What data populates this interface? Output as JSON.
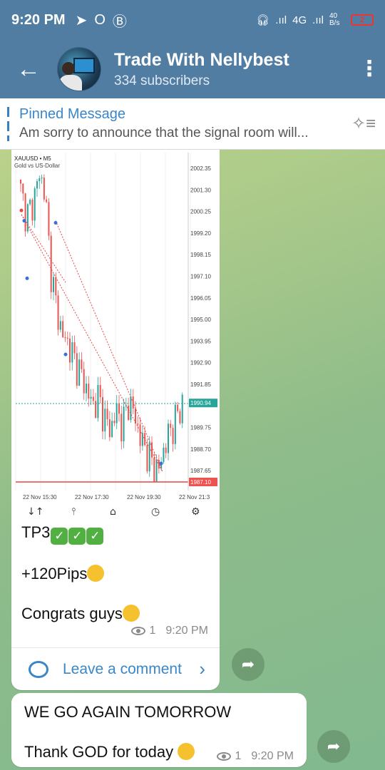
{
  "status": {
    "time": "9:20 PM",
    "net_speed": "40 B/s",
    "battery": "2",
    "network": "4G"
  },
  "header": {
    "title": "Trade With Nellybest",
    "subtitle": "334 subscribers"
  },
  "pinned": {
    "title": "Pinned Message",
    "text": "Am sorry to announce that the signal room will..."
  },
  "chart": {
    "symbol": "XAUUSD • M5",
    "description": "Gold vs US-Dollar",
    "price_ticks": [
      "2002.35",
      "2001.30",
      "2000.25",
      "1999.20",
      "1998.15",
      "1997.10",
      "1996.05",
      "1995.00",
      "1993.95",
      "1992.90",
      "1991.85",
      "1990.94",
      "1989.75",
      "1988.70",
      "1987.65",
      "1987.10"
    ],
    "time_ticks": [
      "22 Nov 15:30",
      "22 Nov 17:30",
      "22 Nov 19:30",
      "22 Nov 21:3"
    ]
  },
  "chart_data": {
    "type": "line",
    "title": "XAUUSD • M5",
    "subtitle": "Gold vs US-Dollar",
    "x": [
      "22 Nov 15:30",
      "22 Nov 17:30",
      "22 Nov 19:30",
      "22 Nov 21:3"
    ],
    "series": [
      {
        "values": [
          2001.5,
          1994.0,
          1989.0,
          1990.94
        ]
      }
    ],
    "current_price": 1990.94,
    "low_price": 1987.1,
    "ylim": [
      1987.1,
      2002.35
    ]
  },
  "message1": {
    "line1": "TP3",
    "line2": "+120Pips",
    "line3": "Congrats guys",
    "views": "1",
    "time": "9:20 PM",
    "comment_label": "Leave a comment"
  },
  "message2": {
    "line1": "WE GO AGAIN TOMORROW",
    "line2": "Thank GOD for today",
    "views": "1",
    "time": "9:20 PM"
  },
  "colors": {
    "header": "#527da3",
    "accent": "#3a86c8",
    "up": "#26a69a",
    "down": "#ef5350"
  }
}
